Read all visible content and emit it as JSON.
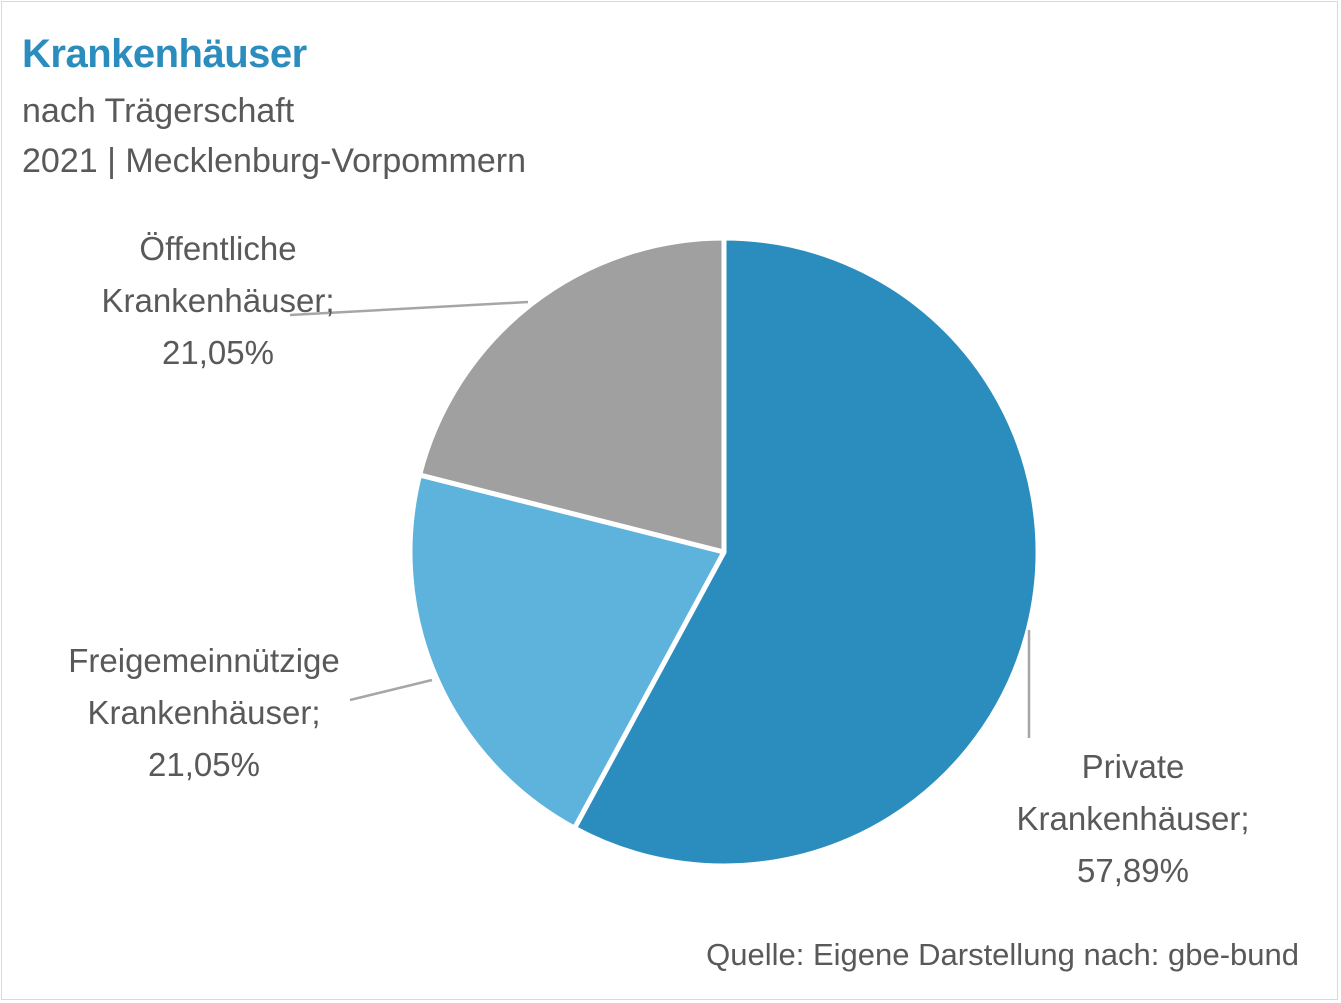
{
  "title": "Krankenhäuser",
  "subtitle_1": "nach Trägerschaft",
  "subtitle_2": "2021 | Mecklenburg-Vorpommern",
  "source": "Quelle: Eigene Darstellung nach: gbe-bund",
  "chart_data": {
    "type": "pie",
    "title": "Krankenhäuser",
    "categories": [
      "Private Krankenhäuser",
      "Freigemeinnützige Krankenhäuser",
      "Öffentliche Krankenhäuser"
    ],
    "values": [
      57.89,
      21.05,
      21.05
    ],
    "colors": [
      "#2b8cbe",
      "#5db3dc",
      "#a0a0a0"
    ],
    "labels": [
      {
        "lines": [
          "Private",
          "Krankenhäuser;",
          "57,89%"
        ]
      },
      {
        "lines": [
          "Freigemeinnützige",
          "Krankenhäuser;",
          "21,05%"
        ]
      },
      {
        "lines": [
          "Öffentliche",
          "Krankenhäuser;",
          "21,05%"
        ]
      }
    ]
  }
}
